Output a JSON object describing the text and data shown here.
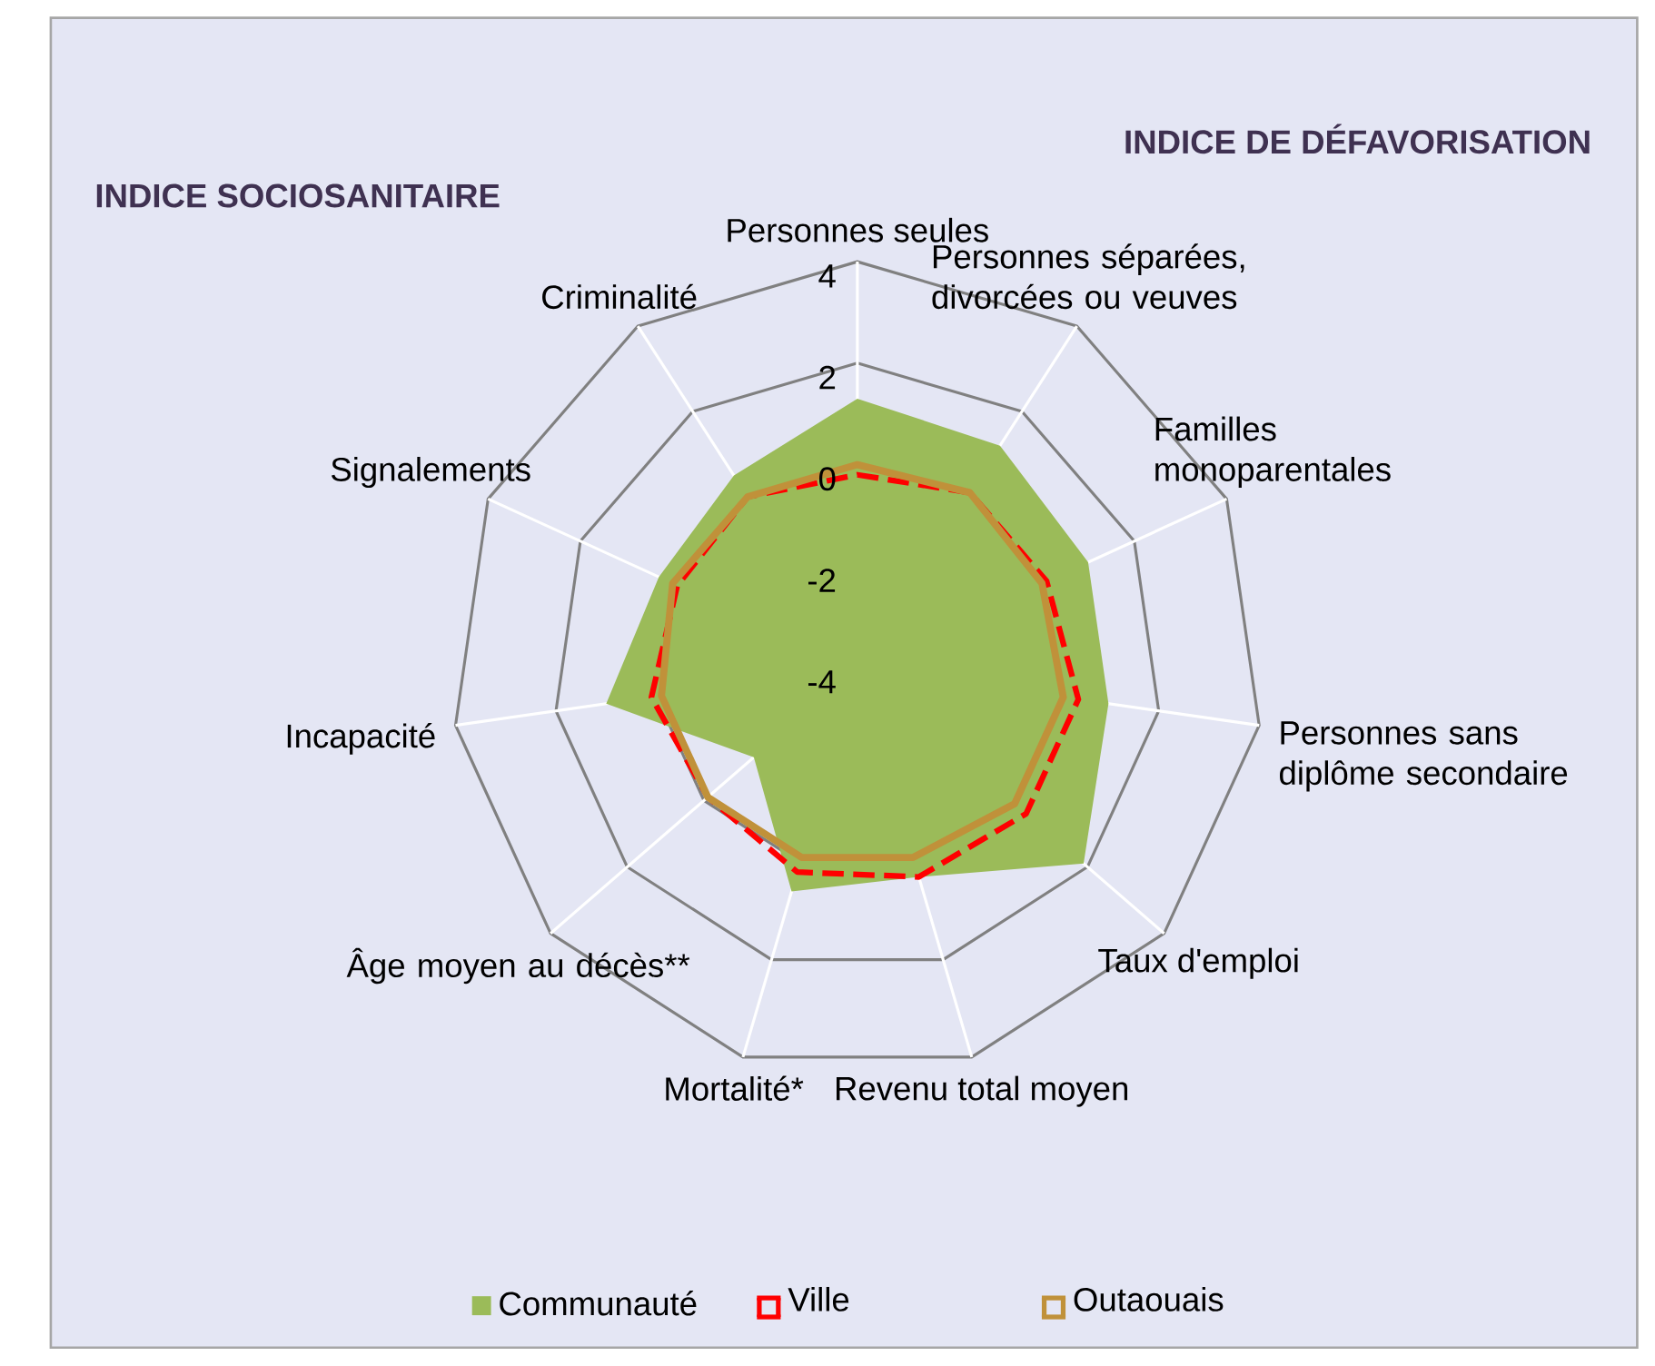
{
  "chart_data": {
    "type": "radar",
    "categories": [
      "Personnes seules",
      "Personnes séparées, divorcées ou veuves",
      "Familles monoparentales",
      "Personnes sans diplôme secondaire",
      "Taux d'emploi",
      "Revenu total moyen",
      "Mortalité*",
      "Âge moyen au décès**",
      "Incapacité",
      "Signalements",
      "Criminalité"
    ],
    "series": [
      {
        "name": "Communauté",
        "color": "#9bbb59",
        "values": [
          1.3,
          1.2,
          1.0,
          1.0,
          1.9,
          0.3,
          0.6,
          -1.3,
          1.0,
          0.3,
          0.5
        ]
      },
      {
        "name": "Ville",
        "line_style": "dashed",
        "color": "#ff0000",
        "values": [
          -0.2,
          0.1,
          0.1,
          0.4,
          0.4,
          0.3,
          0.2,
          -0.1,
          0.1,
          -0.1,
          0.0
        ]
      },
      {
        "name": "Outaouais",
        "line_style": "solid",
        "color": "#c0913a",
        "values": [
          0.0,
          0.1,
          0.0,
          0.1,
          0.1,
          -0.1,
          -0.1,
          -0.1,
          -0.1,
          0.0,
          0.0
        ]
      }
    ],
    "ylim": [
      -4,
      4
    ],
    "yticks": [
      -4,
      -2,
      0,
      2,
      4
    ],
    "grid": true,
    "legend": "bottom",
    "annotations": [
      "INDICE SOCIOSANITAIRE",
      "INDICE DE DÉFAVORISATION"
    ]
  }
}
